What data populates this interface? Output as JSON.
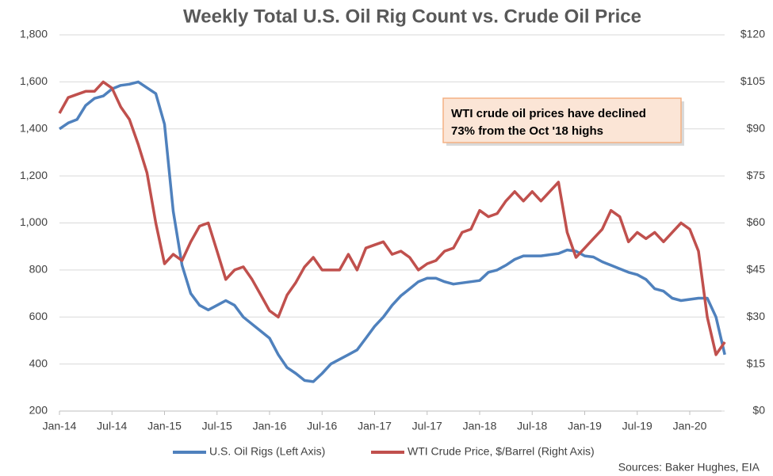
{
  "chart_data": {
    "type": "line",
    "title": "Weekly Total U.S. Oil Rig Count vs. Crude Oil Price",
    "categories": [
      "Jan-14",
      null,
      null,
      null,
      null,
      null,
      "Jul-14",
      null,
      null,
      null,
      null,
      null,
      "Jan-15",
      null,
      null,
      null,
      null,
      null,
      "Jul-15",
      null,
      null,
      null,
      null,
      null,
      "Jan-16",
      null,
      null,
      null,
      null,
      null,
      "Jul-16",
      null,
      null,
      null,
      null,
      null,
      "Jan-17",
      null,
      null,
      null,
      null,
      null,
      "Jul-17",
      null,
      null,
      null,
      null,
      null,
      "Jan-18",
      null,
      null,
      null,
      null,
      null,
      "Jul-18",
      null,
      null,
      null,
      null,
      null,
      "Jan-19",
      null,
      null,
      null,
      null,
      null,
      "Jul-19",
      null,
      null,
      null,
      null,
      null,
      "Jan-20",
      null,
      null,
      null,
      null
    ],
    "series": [
      {
        "name": "U.S. Oil Rigs (Left Axis)",
        "color": "#4f81bd",
        "axis": "y",
        "values": [
          1400,
          1425,
          1440,
          1500,
          1530,
          1540,
          1570,
          1585,
          1590,
          1600,
          1575,
          1550,
          1420,
          1050,
          820,
          700,
          650,
          630,
          650,
          670,
          650,
          600,
          570,
          540,
          510,
          440,
          385,
          360,
          330,
          325,
          360,
          400,
          420,
          440,
          460,
          510,
          560,
          600,
          650,
          690,
          720,
          750,
          765,
          765,
          750,
          740,
          745,
          750,
          755,
          790,
          800,
          820,
          845,
          860,
          860,
          860,
          865,
          870,
          885,
          880,
          860,
          855,
          835,
          820,
          805,
          790,
          780,
          760,
          720,
          710,
          680,
          670,
          675,
          680,
          680,
          600,
          440
        ]
      },
      {
        "name": "WTI Crude Price, $/Barrel (Right Axis)",
        "color": "#c0504d",
        "axis": "y2",
        "values": [
          95,
          100,
          101,
          102,
          102,
          105,
          103,
          97,
          93,
          85,
          76,
          60,
          47,
          50,
          48,
          54,
          59,
          60,
          51,
          42,
          45,
          46,
          42,
          37,
          32,
          30,
          37,
          41,
          46,
          49,
          45,
          45,
          45,
          50,
          45,
          52,
          53,
          54,
          50,
          51,
          49,
          45,
          47,
          48,
          51,
          52,
          57,
          58,
          64,
          62,
          63,
          67,
          70,
          67,
          70,
          67,
          70,
          73,
          57,
          49,
          52,
          55,
          58,
          64,
          62,
          54,
          57,
          55,
          57,
          54,
          57,
          60,
          58,
          51,
          30,
          18,
          22
        ]
      }
    ],
    "ylim": [
      200,
      1800
    ],
    "yticks": [
      {
        "value": 200,
        "label": "200"
      },
      {
        "value": 400,
        "label": "400"
      },
      {
        "value": 600,
        "label": "600"
      },
      {
        "value": 800,
        "label": "800"
      },
      {
        "value": 1000,
        "label": "1,000"
      },
      {
        "value": 1200,
        "label": "1,200"
      },
      {
        "value": 1400,
        "label": "1,400"
      },
      {
        "value": 1600,
        "label": "1,600"
      },
      {
        "value": 1800,
        "label": "1,800"
      }
    ],
    "y2lim": [
      0,
      120
    ],
    "y2ticks": [
      {
        "value": 0,
        "label": "$0"
      },
      {
        "value": 15,
        "label": "$15"
      },
      {
        "value": 30,
        "label": "$30"
      },
      {
        "value": 45,
        "label": "$45"
      },
      {
        "value": 60,
        "label": "$60"
      },
      {
        "value": 75,
        "label": "$75"
      },
      {
        "value": 90,
        "label": "$90"
      },
      {
        "value": 105,
        "label": "$105"
      },
      {
        "value": 120,
        "label": "$120"
      }
    ],
    "grid": true,
    "annotation": [
      "WTI crude oil prices have declined",
      "73% from the Oct '18 highs"
    ],
    "source": "Sources: Baker Hughes, EIA"
  }
}
